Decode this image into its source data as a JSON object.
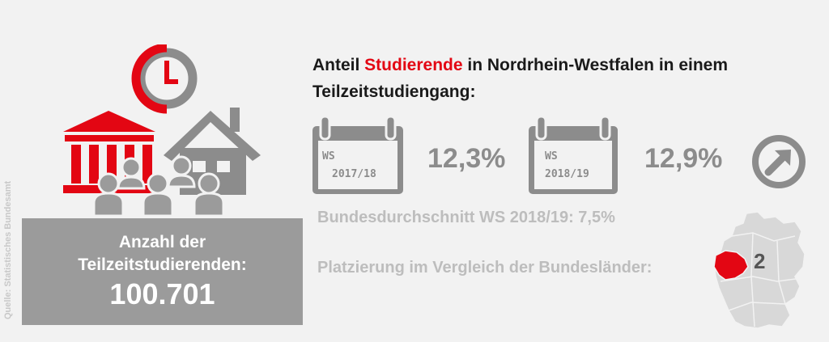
{
  "source": "Quelle: Statistisches Bundesamt",
  "title": {
    "part1": "Anteil ",
    "highlight": "Studierende",
    "part2": " in Nordrhein-Westfalen in einem Teilzeitstudiengang:"
  },
  "semesters": [
    {
      "label": "WS",
      "year": "2017/18",
      "value": "12,3%"
    },
    {
      "label": "WS",
      "year": "2018/19",
      "value": "12,9%"
    }
  ],
  "trend_icon": "arrow-up-right-icon",
  "average": "Bundesdurchschnitt WS 2018/19: 7,5%",
  "ranking": {
    "label": "Platzierung im Vergleich der Bundesländer:",
    "rank": "2"
  },
  "count": {
    "label_line1": "Anzahl der",
    "label_line2": "Teilzeitstudierenden:",
    "value": "100.701"
  },
  "colors": {
    "accent": "#e30613",
    "grey": "#8c8c8c",
    "light_grey": "#bdbdbd",
    "box": "#9b9b9b",
    "background": "#f2f2f2"
  }
}
